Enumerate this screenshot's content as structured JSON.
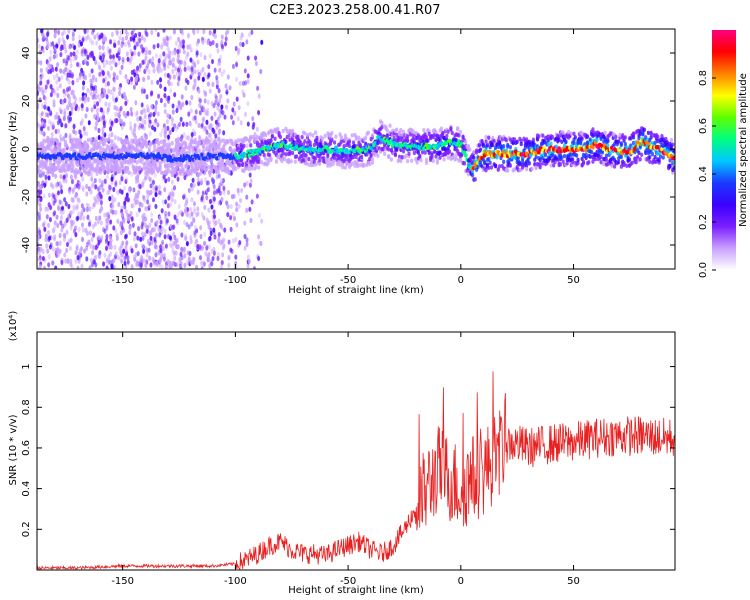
{
  "title": "C2E3.2023.258.00.41.R07",
  "chart_data": [
    {
      "type": "heatmap",
      "xlabel": "Height of straight line (km)",
      "ylabel": "Frequency (Hz)",
      "xlim": [
        -188,
        95
      ],
      "ylim": [
        -50,
        50
      ],
      "xticks": [
        -150,
        -100,
        -50,
        0,
        50
      ],
      "yticks": [
        -40,
        -20,
        0,
        20,
        40
      ],
      "colorbar": {
        "label": "Normalized spectral amplitude",
        "range": [
          0.0,
          1.0
        ],
        "ticks": [
          0.0,
          0.2,
          0.4,
          0.6,
          0.8
        ],
        "colormap": [
          "#ffffff",
          "#c9a0ff",
          "#7a1fff",
          "#3a00ff",
          "#1a3aff",
          "#00c8ff",
          "#00ff80",
          "#60ff00",
          "#ffff00",
          "#ff8000",
          "#ff0000",
          "#ff0080"
        ]
      },
      "ridge": {
        "x": [
          -188,
          -160,
          -135,
          -130,
          -125,
          -110,
          -100,
          -90,
          -80,
          -70,
          -60,
          -50,
          -40,
          -36,
          -30,
          -20,
          -10,
          -5,
          0,
          3,
          5,
          10,
          20,
          30,
          40,
          50,
          55,
          60,
          65,
          70,
          75,
          80,
          85,
          90,
          95
        ],
        "y": [
          -3,
          -3,
          -3,
          -4,
          -4,
          -3,
          -3,
          -1,
          2,
          0,
          0,
          -1,
          0,
          5,
          2,
          1,
          1,
          3,
          2,
          -5,
          -9,
          -2,
          -2,
          -2,
          0,
          0,
          0,
          2,
          0,
          -1,
          -1,
          3,
          1,
          -1,
          -4
        ]
      }
    },
    {
      "type": "line",
      "xlabel": "Height of straight line (km)",
      "ylabel": "SNR (10 * v/v)",
      "yscale_label": "(x10⁴)",
      "xlim": [
        -188,
        95
      ],
      "ylim": [
        0,
        1.17
      ],
      "xticks": [
        -150,
        -100,
        -50,
        0,
        50
      ],
      "yticks": [
        0.2,
        0.4,
        0.6,
        0.8,
        1.0
      ],
      "series": [
        {
          "color": "#e82020",
          "x": [
            -188,
            -170,
            -150,
            -130,
            -110,
            -100,
            -95,
            -90,
            -85,
            -80,
            -75,
            -70,
            -65,
            -60,
            -55,
            -50,
            -45,
            -40,
            -35,
            -30,
            -25,
            -20,
            -15,
            -10,
            -5,
            0,
            5,
            10,
            15,
            20,
            25,
            30,
            40,
            50,
            60,
            70,
            80,
            90,
            95
          ],
          "y": [
            0.01,
            0.01,
            0.02,
            0.02,
            0.02,
            0.03,
            0.05,
            0.08,
            0.12,
            0.14,
            0.1,
            0.08,
            0.08,
            0.07,
            0.1,
            0.12,
            0.14,
            0.1,
            0.08,
            0.12,
            0.2,
            0.3,
            0.4,
            0.5,
            0.45,
            0.4,
            0.45,
            0.48,
            0.55,
            0.62,
            0.62,
            0.6,
            0.62,
            0.63,
            0.65,
            0.66,
            0.66,
            0.65,
            0.65
          ]
        }
      ]
    }
  ]
}
